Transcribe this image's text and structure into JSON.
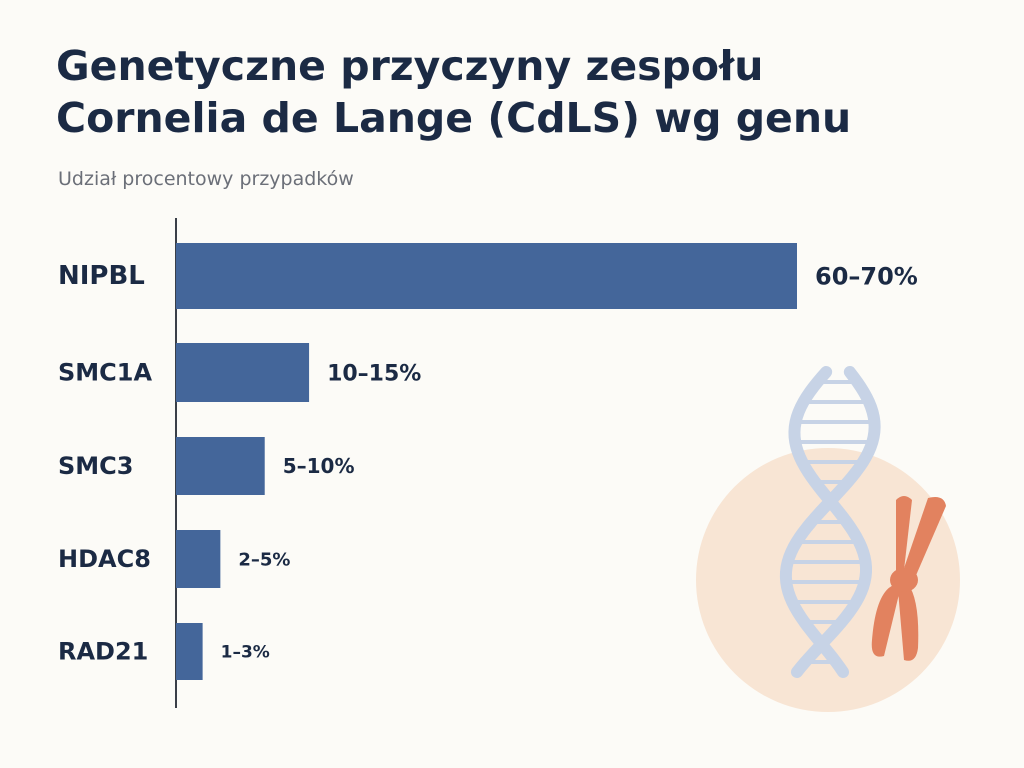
{
  "header": {
    "title_line1": "Genetyczne przyczyny zespołu",
    "title_line2": "Cornelia de Lange (CdLS) wg genu",
    "subtitle": "Udział procentowy przypadków"
  },
  "chart_data": {
    "type": "bar",
    "orientation": "horizontal",
    "title": "Genetyczne przyczyny zespołu Cornelia de Lange (CdLS) wg genu",
    "subtitle": "Udział procentowy przypadków",
    "categories": [
      "NIPBL",
      "SMC1A",
      "SMC3",
      "HDAC8",
      "RAD21"
    ],
    "ranges": [
      [
        60,
        70
      ],
      [
        10,
        15
      ],
      [
        5,
        10
      ],
      [
        2,
        5
      ],
      [
        1,
        3
      ]
    ],
    "values": [
      70,
      15,
      10,
      5,
      3
    ],
    "value_labels": [
      "60–70%",
      "10–15%",
      "5–10%",
      "2–5%",
      "1–3%"
    ],
    "bar_color": "#44669a",
    "grid": false,
    "legend": "none"
  },
  "colors": {
    "title": "#1b2a44",
    "subtitle": "#6b6f78",
    "axis": "#3a3f48",
    "bar": "#44669a",
    "dna": "#c7d3e6",
    "chromosome": "#e2825f",
    "circle": "#f8e5d4"
  },
  "decoration": {
    "icons": [
      "dna-helix-icon",
      "chromosome-icon"
    ]
  }
}
